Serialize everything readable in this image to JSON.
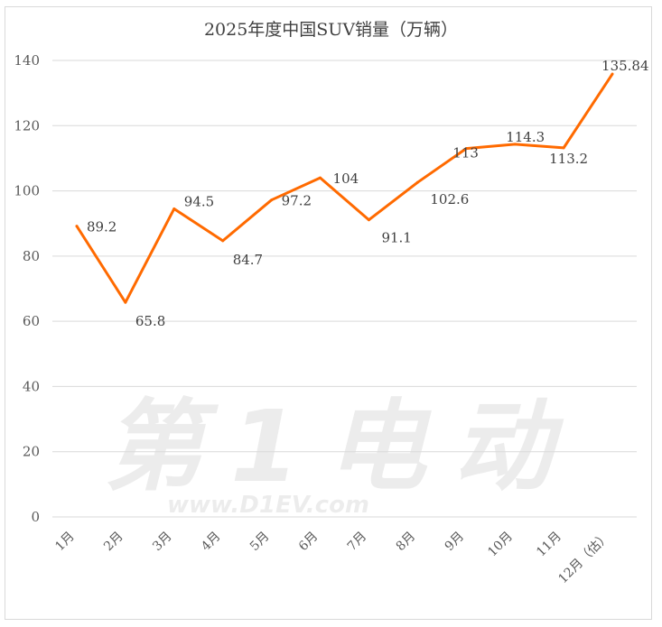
{
  "chart_data": {
    "type": "line",
    "title": "2025年度中国SUV销量（万辆）",
    "categories": [
      "1月",
      "2月",
      "3月",
      "4月",
      "5月",
      "6月",
      "7月",
      "8月",
      "9月",
      "10月",
      "11月",
      "12月（估）"
    ],
    "series": [
      {
        "values": [
          89.2,
          65.8,
          94.5,
          84.7,
          97.2,
          104,
          91.1,
          102.6,
          113,
          114.3,
          113.2,
          135.84
        ],
        "color": "#ff6a00"
      }
    ],
    "data_labels": [
      "89.2",
      "65.8",
      "94.5",
      "84.7",
      "97.2",
      "104",
      "91.1",
      "102.6",
      "113",
      "114.3",
      "113.2",
      "135.84"
    ],
    "ylim": [
      0,
      140
    ],
    "yticks": [
      0,
      20,
      40,
      60,
      80,
      100,
      120,
      140
    ],
    "grid": true,
    "legend": "none"
  },
  "watermark": {
    "logo": "第1电动",
    "url": "www.D1EV.com"
  }
}
